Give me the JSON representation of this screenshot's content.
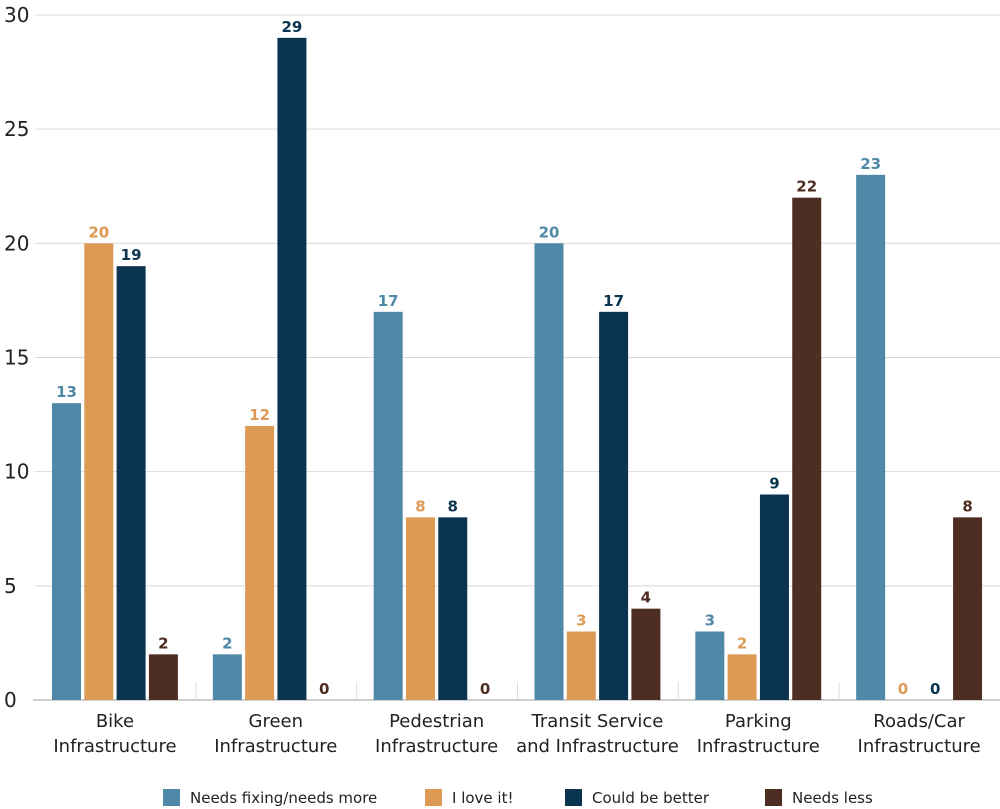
{
  "chart_data": {
    "type": "bar",
    "title": "",
    "xlabel": "",
    "ylabel": "",
    "ylim": [
      0,
      30
    ],
    "yticks": [
      0,
      5,
      10,
      15,
      20,
      25,
      30
    ],
    "grid": true,
    "legend_position": "bottom",
    "categories": [
      [
        "Bike",
        "Infrastructure"
      ],
      [
        "Green",
        "Infrastructure"
      ],
      [
        "Pedestrian",
        "Infrastructure"
      ],
      [
        "Transit Service",
        "and Infrastructure"
      ],
      [
        "Parking",
        "Infrastructure"
      ],
      [
        "Roads/Car",
        "Infrastructure"
      ]
    ],
    "series": [
      {
        "name": "Needs fixing/needs more",
        "color": "#5088a8",
        "values": [
          13,
          2,
          17,
          20,
          3,
          23
        ]
      },
      {
        "name": "I love it!",
        "color": "#dd9a55",
        "values": [
          20,
          12,
          8,
          3,
          2,
          0
        ]
      },
      {
        "name": "Could be better",
        "color": "#0b3451",
        "values": [
          19,
          29,
          8,
          17,
          9,
          0
        ]
      },
      {
        "name": "Needs less",
        "color": "#4e2e22",
        "values": [
          2,
          0,
          0,
          4,
          22,
          8
        ]
      }
    ]
  }
}
